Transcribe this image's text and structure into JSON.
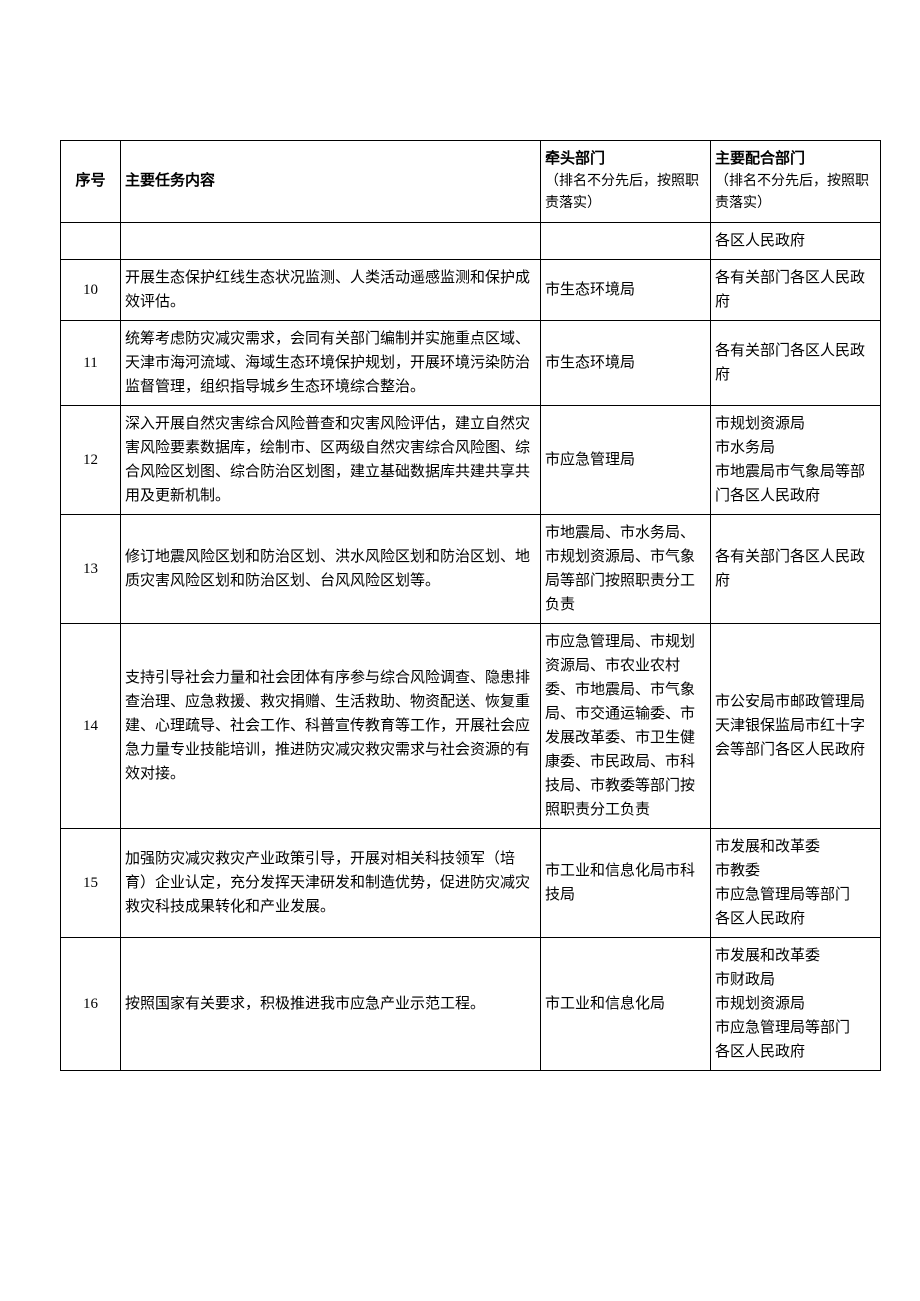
{
  "headers": {
    "num": "序号",
    "task": "主要任务内容",
    "lead_title": "牵头部门",
    "lead_sub": "（排名不分先后，按照职责落实）",
    "support_title": "主要配合部门",
    "support_sub": "（排名不分先后，按照职责落实）"
  },
  "partial_row": {
    "support": "各区人民政府"
  },
  "rows": [
    {
      "num": "10",
      "task": "开展生态保护红线生态状况监测、人类活动遥感监测和保护成效评估。",
      "lead": "市生态环境局",
      "support": "各有关部门各区人民政府"
    },
    {
      "num": "11",
      "task": "统筹考虑防灾减灾需求，会同有关部门编制并实施重点区域、天津市海河流域、海域生态环境保护规划，开展环境污染防治监督管理，组织指导城乡生态环境综合整治。",
      "lead": "市生态环境局",
      "support": "各有关部门各区人民政府"
    },
    {
      "num": "12",
      "task": "深入开展自然灾害综合风险普查和灾害风险评估，建立自然灾害风险要素数据库，绘制市、区两级自然灾害综合风险图、综合风险区划图、综合防治区划图，建立基础数据库共建共享共用及更新机制。",
      "lead": "市应急管理局",
      "support": "市规划资源局\n市水务局\n市地震局市气象局等部门各区人民政府"
    },
    {
      "num": "13",
      "task": "修订地震风险区划和防治区划、洪水风险区划和防治区划、地质灾害风险区划和防治区划、台风风险区划等。",
      "lead": "市地震局、市水务局、市规划资源局、市气象局等部门按照职责分工负责",
      "support": "各有关部门各区人民政府"
    },
    {
      "num": "14",
      "task": "支持引导社会力量和社会团体有序参与综合风险调查、隐患排查治理、应急救援、救灾捐赠、生活救助、物资配送、恢复重建、心理疏导、社会工作、科普宣传教育等工作，开展社会应急力量专业技能培训，推进防灾减灾救灾需求与社会资源的有效对接。",
      "lead": "市应急管理局、市规划资源局、市农业农村委、市地震局、市气象局、市交通运输委、市发展改革委、市卫生健康委、市民政局、市科技局、市教委等部门按照职责分工负责",
      "support": "市公安局市邮政管理局天津银保监局市红十字会等部门各区人民政府"
    },
    {
      "num": "15",
      "task": "加强防灾减灾救灾产业政策引导，开展对相关科技领军（培育）企业认定，充分发挥天津研发和制造优势，促进防灾减灾救灾科技成果转化和产业发展。",
      "lead": "市工业和信息化局市科技局",
      "support": "市发展和改革委\n市教委\n市应急管理局等部门\n各区人民政府"
    },
    {
      "num": "16",
      "task": "按照国家有关要求，积极推进我市应急产业示范工程。",
      "lead": "市工业和信息化局",
      "support": "市发展和改革委\n市财政局\n市规划资源局\n市应急管理局等部门\n各区人民政府"
    }
  ]
}
